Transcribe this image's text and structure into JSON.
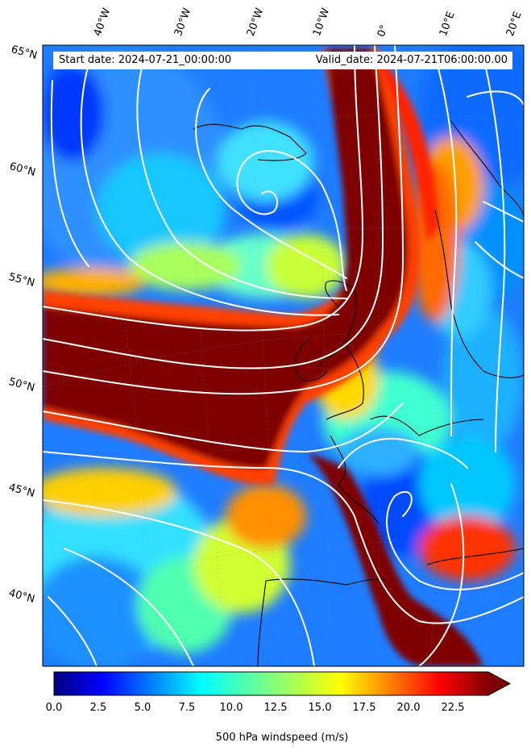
{
  "header": {
    "start_label": "Start date: 2024-07-21_00:00:00",
    "valid_label": "Valid_date: 2024-07-21T06:00:00.00"
  },
  "longitude_labels": [
    "40°W",
    "30°W",
    "20°W",
    "10°W",
    "0°",
    "10°E",
    "20°E"
  ],
  "latitude_labels": [
    "65°N",
    "60°N",
    "55°N",
    "50°N",
    "45°N",
    "40°N"
  ],
  "colorbar": {
    "label": "500 hPa windspeed (m/s)",
    "ticks": [
      "0.0",
      "2.5",
      "5.0",
      "7.5",
      "10.0",
      "12.5",
      "15.0",
      "17.5",
      "20.0",
      "22.5"
    ],
    "range": [
      0,
      25
    ],
    "extend": "max",
    "colormap": "jet"
  },
  "colors": {
    "land_border": "#000000",
    "streamline": "#ffffff",
    "jet_core": "#7f0000",
    "calm": "#0000a0"
  }
}
